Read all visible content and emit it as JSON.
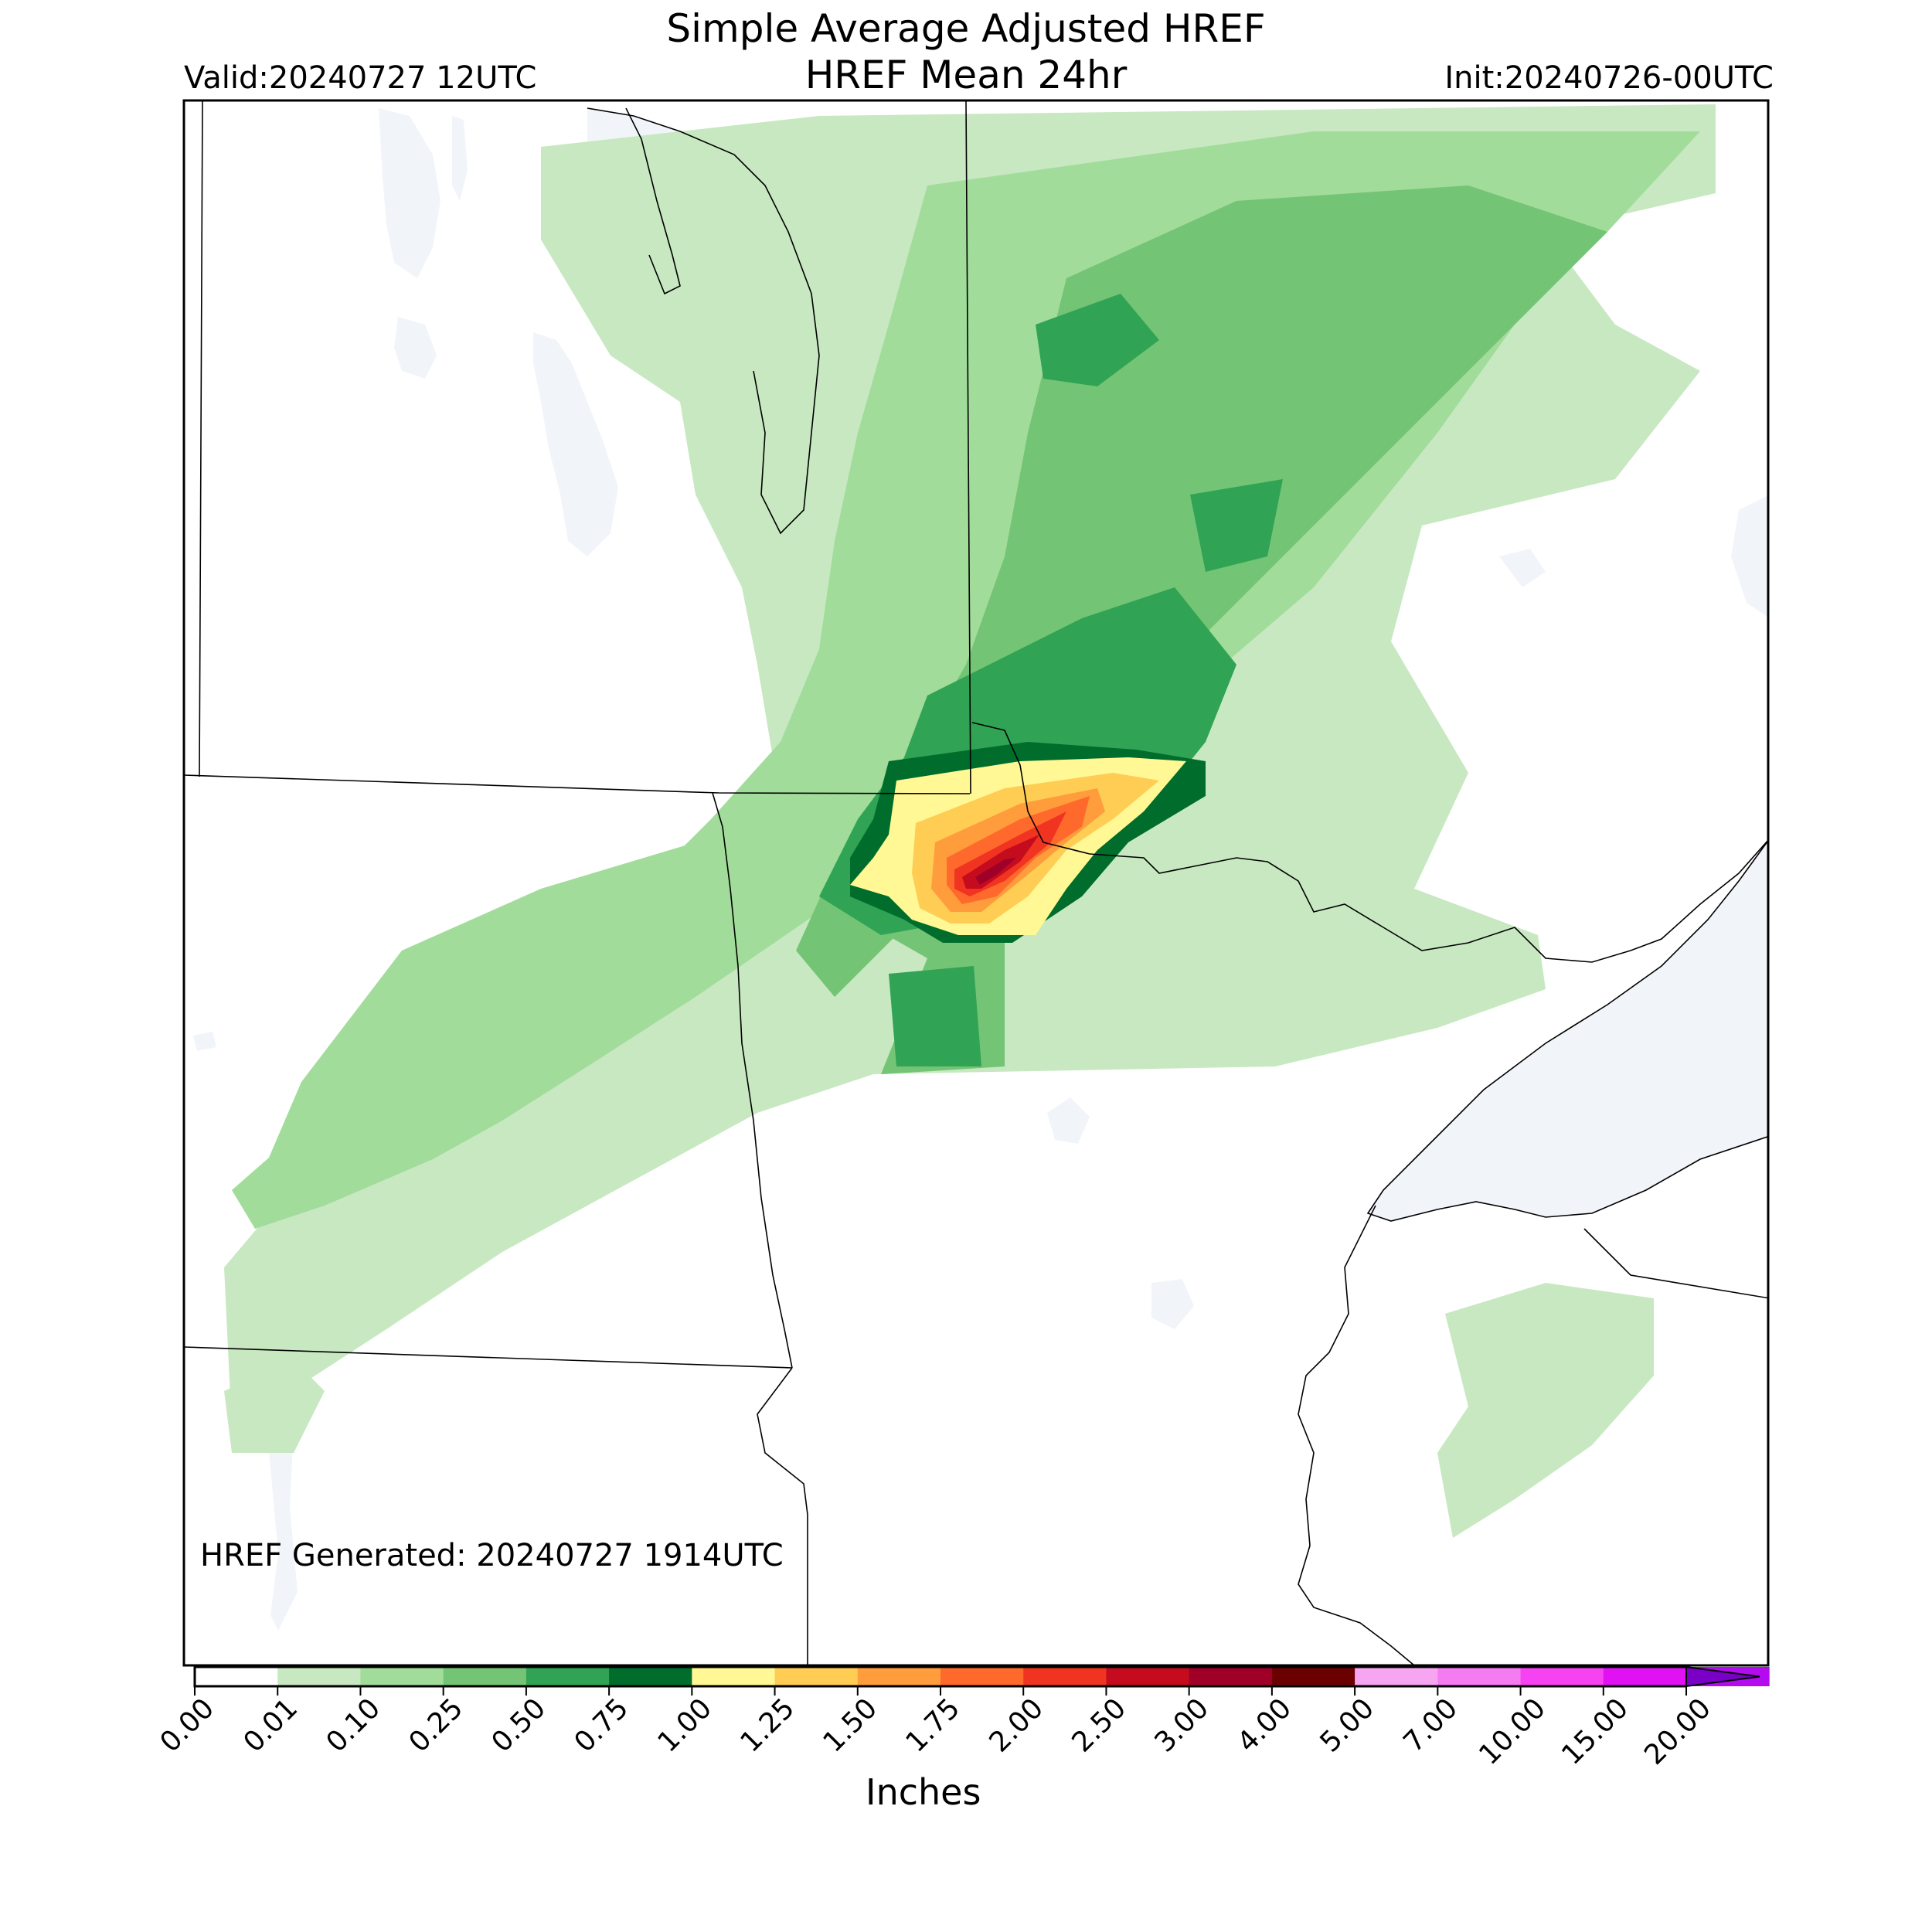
{
  "header": {
    "title_line1": "Simple Average Adjusted HREF",
    "title_line2": "HREF Mean 24hr",
    "valid": "Valid:20240727 12UTC",
    "init": "Init:20240726-00UTC"
  },
  "map": {
    "annotation": "HREF Generated: 20240727 1914UTC",
    "land_color": "#ffffff",
    "water_color": "#f1f5fa",
    "border_color": "#000000"
  },
  "colorbar": {
    "label": "Inches",
    "ticks": [
      "0.00",
      "0.01",
      "0.10",
      "0.25",
      "0.50",
      "0.75",
      "1.00",
      "1.25",
      "1.50",
      "1.75",
      "2.00",
      "2.50",
      "3.00",
      "4.00",
      "5.00",
      "7.00",
      "10.00",
      "15.00",
      "20.00"
    ],
    "colors": [
      "#ffffff",
      "#c7e8c0",
      "#a1dc9a",
      "#74c476",
      "#31a354",
      "#006d2c",
      "#fff894",
      "#ffcc54",
      "#ff9c3c",
      "#ff6a2c",
      "#f03421",
      "#c50c1e",
      "#a00028",
      "#6b0000",
      "#f6a6f0",
      "#f47cf0",
      "#f642f0",
      "#e012f4",
      "#b40af0",
      "#7a00c8"
    ],
    "extend": "max"
  }
}
